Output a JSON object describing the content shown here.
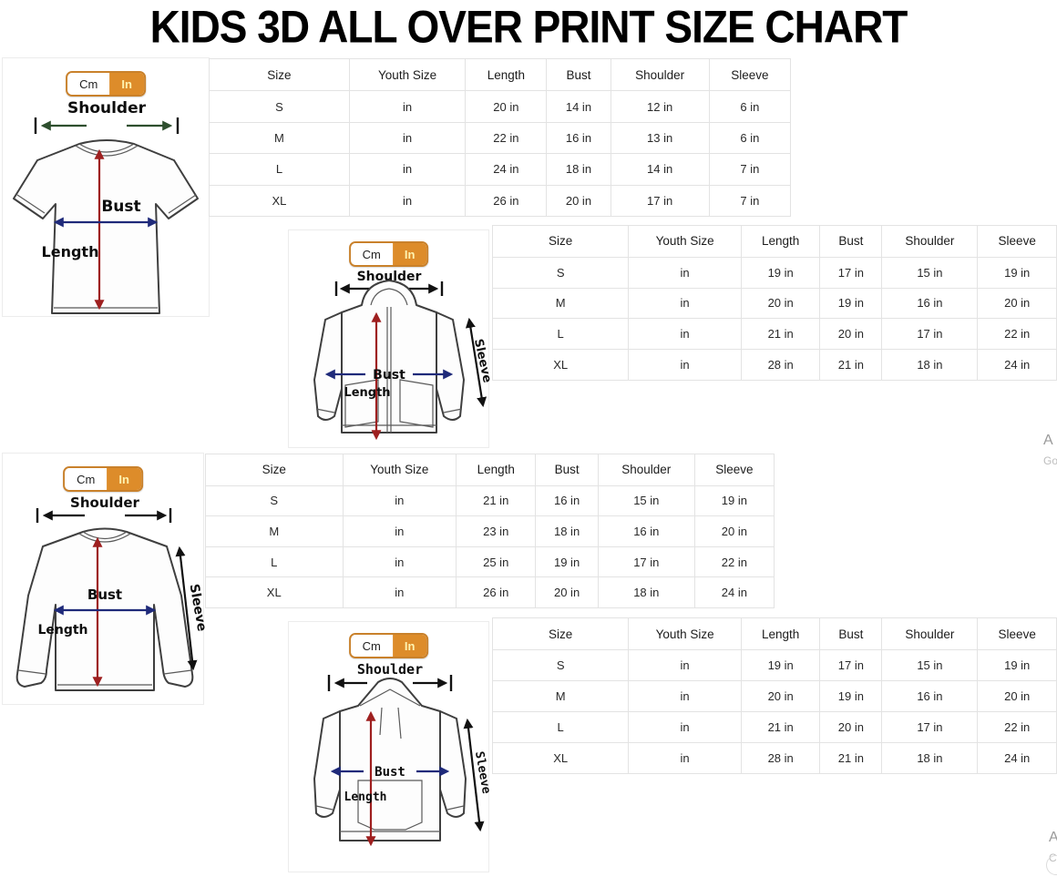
{
  "title": "KIDS 3D ALL OVER PRINT SIZE CHART",
  "unit_toggle": {
    "cm": "Cm",
    "in": "In",
    "active": "In"
  },
  "table_columns": [
    "Size",
    "Youth Size",
    "Length",
    "Bust",
    "Shoulder",
    "Sleeve"
  ],
  "diagram_labels": {
    "shoulder": "Shoulder",
    "bust": "Bust",
    "length": "Length",
    "sleeve": "Sleeve"
  },
  "sections": [
    {
      "garment": "t-shirt",
      "rows": [
        [
          "S",
          "in",
          "20 in",
          "14 in",
          "12 in",
          "6 in"
        ],
        [
          "M",
          "in",
          "22 in",
          "16 in",
          "13 in",
          "6 in"
        ],
        [
          "L",
          "in",
          "24 in",
          "18 in",
          "14 in",
          "7 in"
        ],
        [
          "XL",
          "in",
          "26 in",
          "20 in",
          "17 in",
          "7 in"
        ]
      ]
    },
    {
      "garment": "zip-hoodie",
      "rows": [
        [
          "S",
          "in",
          "19 in",
          "17 in",
          "15 in",
          "19 in"
        ],
        [
          "M",
          "in",
          "20 in",
          "19 in",
          "16 in",
          "20 in"
        ],
        [
          "L",
          "in",
          "21 in",
          "20 in",
          "17 in",
          "22 in"
        ],
        [
          "XL",
          "in",
          "28 in",
          "21 in",
          "18 in",
          "24 in"
        ]
      ]
    },
    {
      "garment": "long-sleeve-shirt",
      "rows": [
        [
          "S",
          "in",
          "21 in",
          "16 in",
          "15 in",
          "19 in"
        ],
        [
          "M",
          "in",
          "23 in",
          "18 in",
          "16 in",
          "20 in"
        ],
        [
          "L",
          "in",
          "25 in",
          "19 in",
          "17 in",
          "22 in"
        ],
        [
          "XL",
          "in",
          "26 in",
          "20 in",
          "18 in",
          "24 in"
        ]
      ]
    },
    {
      "garment": "pullover-hoodie",
      "rows": [
        [
          "S",
          "in",
          "19 in",
          "17 in",
          "15 in",
          "19 in"
        ],
        [
          "M",
          "in",
          "20 in",
          "19 in",
          "16 in",
          "20 in"
        ],
        [
          "L",
          "in",
          "21 in",
          "20 in",
          "17 in",
          "22 in"
        ],
        [
          "XL",
          "in",
          "28 in",
          "21 in",
          "18 in",
          "24 in"
        ]
      ]
    }
  ],
  "edge_fragments": {
    "top_letter": "A",
    "top_sub": "Go",
    "bottom_letter": "A",
    "bottom_sub": "C"
  },
  "colors": {
    "accent_orange": "#dd8c2a",
    "accent_border": "#c9812b",
    "arrow_red": "#9e1f1f",
    "arrow_navy": "#1f2a7a",
    "arrow_green": "#2e4f2e",
    "table_border": "#e3e3e3"
  }
}
